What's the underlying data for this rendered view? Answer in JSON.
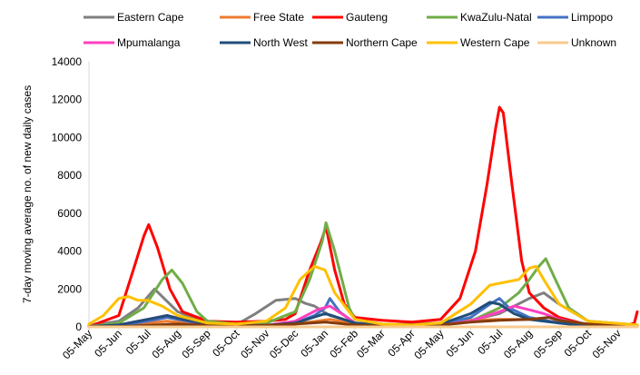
{
  "chart_data": {
    "type": "line",
    "title": "",
    "xlabel": "",
    "ylabel": "7-day moving average no. of new daily cases",
    "ylim": [
      0,
      14000
    ],
    "y_ticks": [
      0,
      2000,
      4000,
      6000,
      8000,
      10000,
      12000,
      14000
    ],
    "y_tick_labels": [
      "0",
      "2000",
      "4000",
      "6000",
      "8000",
      "10000",
      "12000",
      "14000"
    ],
    "x_start": "2020-05-05",
    "x_end": "2021-11-25",
    "x_tick_labels": [
      "05-May",
      "05-Jun",
      "05-Jul",
      "05-Aug",
      "05-Sep",
      "05-Oct",
      "05-Nov",
      "05-Dec",
      "05-Jan",
      "05-Feb",
      "05-Mar",
      "05-Apr",
      "05-May",
      "05-Jun",
      "05-Jul",
      "05-Aug",
      "05-Sep",
      "05-Oct",
      "05-Nov"
    ],
    "x_tick_dates": [
      "2020-05-05",
      "2020-06-05",
      "2020-07-05",
      "2020-08-05",
      "2020-09-05",
      "2020-10-05",
      "2020-11-05",
      "2020-12-05",
      "2021-01-05",
      "2021-02-05",
      "2021-03-05",
      "2021-04-05",
      "2021-05-05",
      "2021-06-05",
      "2021-07-05",
      "2021-08-05",
      "2021-09-05",
      "2021-10-05",
      "2021-11-05"
    ],
    "grid": false,
    "legend_position": "top",
    "series": [
      {
        "name": "Eastern Cape",
        "color": "#7f7f7f",
        "points": [
          [
            "2020-05-05",
            50
          ],
          [
            "2020-06-05",
            300
          ],
          [
            "2020-06-25",
            1000
          ],
          [
            "2020-07-12",
            2000
          ],
          [
            "2020-07-22",
            1500
          ],
          [
            "2020-08-05",
            800
          ],
          [
            "2020-09-05",
            150
          ],
          [
            "2020-10-05",
            120
          ],
          [
            "2020-10-25",
            700
          ],
          [
            "2020-11-15",
            1400
          ],
          [
            "2020-12-05",
            1500
          ],
          [
            "2020-12-15",
            1250
          ],
          [
            "2020-12-25",
            1100
          ],
          [
            "2021-01-10",
            600
          ],
          [
            "2021-02-05",
            200
          ],
          [
            "2021-03-05",
            100
          ],
          [
            "2021-05-05",
            200
          ],
          [
            "2021-06-05",
            350
          ],
          [
            "2021-07-05",
            700
          ],
          [
            "2021-08-05",
            1500
          ],
          [
            "2021-08-20",
            1800
          ],
          [
            "2021-09-05",
            1200
          ],
          [
            "2021-10-05",
            300
          ],
          [
            "2021-11-25",
            80
          ]
        ]
      },
      {
        "name": "Free State",
        "color": "#ed7d31",
        "points": [
          [
            "2020-05-05",
            20
          ],
          [
            "2020-06-05",
            50
          ],
          [
            "2020-07-05",
            200
          ],
          [
            "2020-07-25",
            300
          ],
          [
            "2020-08-10",
            220
          ],
          [
            "2020-09-05",
            60
          ],
          [
            "2020-10-05",
            40
          ],
          [
            "2020-11-05",
            60
          ],
          [
            "2020-12-05",
            150
          ],
          [
            "2021-01-10",
            400
          ],
          [
            "2021-02-05",
            150
          ],
          [
            "2021-03-05",
            50
          ],
          [
            "2021-04-05",
            60
          ],
          [
            "2021-05-05",
            150
          ],
          [
            "2021-06-05",
            350
          ],
          [
            "2021-07-05",
            400
          ],
          [
            "2021-08-05",
            400
          ],
          [
            "2021-09-05",
            250
          ],
          [
            "2021-10-05",
            100
          ],
          [
            "2021-11-25",
            30
          ]
        ]
      },
      {
        "name": "Gauteng",
        "color": "#ff0000",
        "points": [
          [
            "2020-05-05",
            20
          ],
          [
            "2020-06-05",
            600
          ],
          [
            "2020-06-20",
            3000
          ],
          [
            "2020-07-01",
            4800
          ],
          [
            "2020-07-06",
            5400
          ],
          [
            "2020-07-15",
            4200
          ],
          [
            "2020-07-28",
            2000
          ],
          [
            "2020-08-10",
            800
          ],
          [
            "2020-09-05",
            300
          ],
          [
            "2020-10-05",
            250
          ],
          [
            "2020-11-05",
            300
          ],
          [
            "2020-11-25",
            400
          ],
          [
            "2020-12-05",
            700
          ],
          [
            "2020-12-20",
            3000
          ],
          [
            "2021-01-01",
            4500
          ],
          [
            "2021-01-06",
            5300
          ],
          [
            "2021-01-15",
            3000
          ],
          [
            "2021-01-25",
            1200
          ],
          [
            "2021-02-05",
            500
          ],
          [
            "2021-03-05",
            350
          ],
          [
            "2021-04-05",
            250
          ],
          [
            "2021-05-05",
            400
          ],
          [
            "2021-05-25",
            1500
          ],
          [
            "2021-06-10",
            4000
          ],
          [
            "2021-06-22",
            7500
          ],
          [
            "2021-07-01",
            10500
          ],
          [
            "2021-07-05",
            11600
          ],
          [
            "2021-07-09",
            11300
          ],
          [
            "2021-07-18",
            7500
          ],
          [
            "2021-07-28",
            3500
          ],
          [
            "2021-08-05",
            1800
          ],
          [
            "2021-08-20",
            1000
          ],
          [
            "2021-09-05",
            500
          ],
          [
            "2021-10-05",
            100
          ],
          [
            "2021-11-15",
            80
          ],
          [
            "2021-11-22",
            200
          ],
          [
            "2021-11-25",
            800
          ]
        ]
      },
      {
        "name": "KwaZulu-Natal",
        "color": "#70ad47",
        "points": [
          [
            "2020-05-05",
            30
          ],
          [
            "2020-06-05",
            200
          ],
          [
            "2020-07-01",
            1000
          ],
          [
            "2020-07-20",
            2500
          ],
          [
            "2020-07-30",
            3000
          ],
          [
            "2020-08-10",
            2300
          ],
          [
            "2020-08-25",
            800
          ],
          [
            "2020-09-05",
            300
          ],
          [
            "2020-10-05",
            150
          ],
          [
            "2020-11-05",
            200
          ],
          [
            "2020-12-05",
            800
          ],
          [
            "2020-12-20",
            2500
          ],
          [
            "2021-01-02",
            4500
          ],
          [
            "2021-01-06",
            5500
          ],
          [
            "2021-01-15",
            4000
          ],
          [
            "2021-01-30",
            1000
          ],
          [
            "2021-02-05",
            400
          ],
          [
            "2021-03-05",
            150
          ],
          [
            "2021-04-05",
            100
          ],
          [
            "2021-05-05",
            150
          ],
          [
            "2021-06-05",
            300
          ],
          [
            "2021-07-05",
            1000
          ],
          [
            "2021-07-25",
            1800
          ],
          [
            "2021-08-05",
            2500
          ],
          [
            "2021-08-15",
            3200
          ],
          [
            "2021-08-22",
            3600
          ],
          [
            "2021-09-01",
            2500
          ],
          [
            "2021-09-15",
            1000
          ],
          [
            "2021-10-05",
            300
          ],
          [
            "2021-11-25",
            100
          ]
        ]
      },
      {
        "name": "Limpopo",
        "color": "#4472c4",
        "points": [
          [
            "2020-05-05",
            10
          ],
          [
            "2020-06-05",
            50
          ],
          [
            "2020-07-05",
            300
          ],
          [
            "2020-07-25",
            500
          ],
          [
            "2020-08-10",
            350
          ],
          [
            "2020-09-05",
            100
          ],
          [
            "2020-10-05",
            50
          ],
          [
            "2020-11-05",
            50
          ],
          [
            "2020-12-05",
            200
          ],
          [
            "2020-12-25",
            600
          ],
          [
            "2021-01-05",
            1000
          ],
          [
            "2021-01-10",
            1500
          ],
          [
            "2021-01-20",
            800
          ],
          [
            "2021-02-05",
            200
          ],
          [
            "2021-03-05",
            50
          ],
          [
            "2021-05-05",
            100
          ],
          [
            "2021-06-05",
            500
          ],
          [
            "2021-06-25",
            1200
          ],
          [
            "2021-07-05",
            1500
          ],
          [
            "2021-07-15",
            1000
          ],
          [
            "2021-08-05",
            500
          ],
          [
            "2021-09-05",
            200
          ],
          [
            "2021-10-05",
            50
          ],
          [
            "2021-11-25",
            20
          ]
        ]
      },
      {
        "name": "Mpumalanga",
        "color": "#ff3fbf",
        "points": [
          [
            "2020-05-05",
            10
          ],
          [
            "2020-06-05",
            100
          ],
          [
            "2020-07-05",
            400
          ],
          [
            "2020-07-25",
            600
          ],
          [
            "2020-08-10",
            400
          ],
          [
            "2020-09-05",
            120
          ],
          [
            "2020-10-05",
            60
          ],
          [
            "2020-11-05",
            80
          ],
          [
            "2020-12-05",
            300
          ],
          [
            "2020-12-28",
            900
          ],
          [
            "2021-01-10",
            1100
          ],
          [
            "2021-01-25",
            600
          ],
          [
            "2021-02-05",
            200
          ],
          [
            "2021-03-05",
            80
          ],
          [
            "2021-05-05",
            100
          ],
          [
            "2021-06-05",
            300
          ],
          [
            "2021-07-05",
            800
          ],
          [
            "2021-07-20",
            1100
          ],
          [
            "2021-08-05",
            900
          ],
          [
            "2021-08-20",
            700
          ],
          [
            "2021-09-05",
            400
          ],
          [
            "2021-10-05",
            100
          ],
          [
            "2021-11-25",
            30
          ]
        ]
      },
      {
        "name": "North West",
        "color": "#1f4e79",
        "points": [
          [
            "2020-05-05",
            20
          ],
          [
            "2020-06-05",
            100
          ],
          [
            "2020-07-05",
            400
          ],
          [
            "2020-07-25",
            600
          ],
          [
            "2020-08-10",
            400
          ],
          [
            "2020-09-05",
            150
          ],
          [
            "2020-10-05",
            80
          ],
          [
            "2020-11-05",
            80
          ],
          [
            "2020-12-05",
            200
          ],
          [
            "2021-01-05",
            700
          ],
          [
            "2021-01-12",
            600
          ],
          [
            "2021-02-05",
            200
          ],
          [
            "2021-03-05",
            80
          ],
          [
            "2021-05-05",
            150
          ],
          [
            "2021-06-05",
            700
          ],
          [
            "2021-06-25",
            1300
          ],
          [
            "2021-07-05",
            1200
          ],
          [
            "2021-07-20",
            700
          ],
          [
            "2021-08-05",
            400
          ],
          [
            "2021-09-05",
            200
          ],
          [
            "2021-10-05",
            60
          ],
          [
            "2021-11-25",
            20
          ]
        ]
      },
      {
        "name": "Northern Cape",
        "color": "#843c0c",
        "points": [
          [
            "2020-05-05",
            10
          ],
          [
            "2020-06-05",
            20
          ],
          [
            "2020-07-05",
            80
          ],
          [
            "2020-08-05",
            150
          ],
          [
            "2020-09-05",
            80
          ],
          [
            "2020-10-05",
            50
          ],
          [
            "2020-11-05",
            80
          ],
          [
            "2020-12-05",
            150
          ],
          [
            "2021-01-05",
            250
          ],
          [
            "2021-02-05",
            100
          ],
          [
            "2021-03-05",
            50
          ],
          [
            "2021-05-05",
            100
          ],
          [
            "2021-06-05",
            250
          ],
          [
            "2021-07-05",
            350
          ],
          [
            "2021-08-05",
            400
          ],
          [
            "2021-08-25",
            500
          ],
          [
            "2021-09-05",
            350
          ],
          [
            "2021-10-05",
            150
          ],
          [
            "2021-11-25",
            30
          ]
        ]
      },
      {
        "name": "Western Cape",
        "color": "#ffc000",
        "points": [
          [
            "2020-05-05",
            150
          ],
          [
            "2020-05-20",
            600
          ],
          [
            "2020-06-05",
            1500
          ],
          [
            "2020-06-15",
            1600
          ],
          [
            "2020-06-25",
            1400
          ],
          [
            "2020-07-05",
            1400
          ],
          [
            "2020-07-20",
            1100
          ],
          [
            "2020-08-05",
            600
          ],
          [
            "2020-09-05",
            200
          ],
          [
            "2020-10-05",
            150
          ],
          [
            "2020-11-05",
            300
          ],
          [
            "2020-11-25",
            1000
          ],
          [
            "2020-12-10",
            2500
          ],
          [
            "2020-12-25",
            3200
          ],
          [
            "2021-01-05",
            3000
          ],
          [
            "2021-01-15",
            1800
          ],
          [
            "2021-02-05",
            400
          ],
          [
            "2021-03-05",
            150
          ],
          [
            "2021-04-05",
            100
          ],
          [
            "2021-05-05",
            200
          ],
          [
            "2021-06-05",
            1200
          ],
          [
            "2021-06-25",
            2200
          ],
          [
            "2021-07-05",
            2300
          ],
          [
            "2021-07-25",
            2500
          ],
          [
            "2021-08-05",
            3100
          ],
          [
            "2021-08-12",
            3200
          ],
          [
            "2021-08-20",
            2500
          ],
          [
            "2021-09-05",
            1200
          ],
          [
            "2021-10-05",
            300
          ],
          [
            "2021-11-25",
            100
          ]
        ]
      },
      {
        "name": "Unknown",
        "color": "#f8cb8f",
        "points": [
          [
            "2020-05-05",
            0
          ],
          [
            "2021-11-25",
            0
          ]
        ]
      }
    ]
  }
}
